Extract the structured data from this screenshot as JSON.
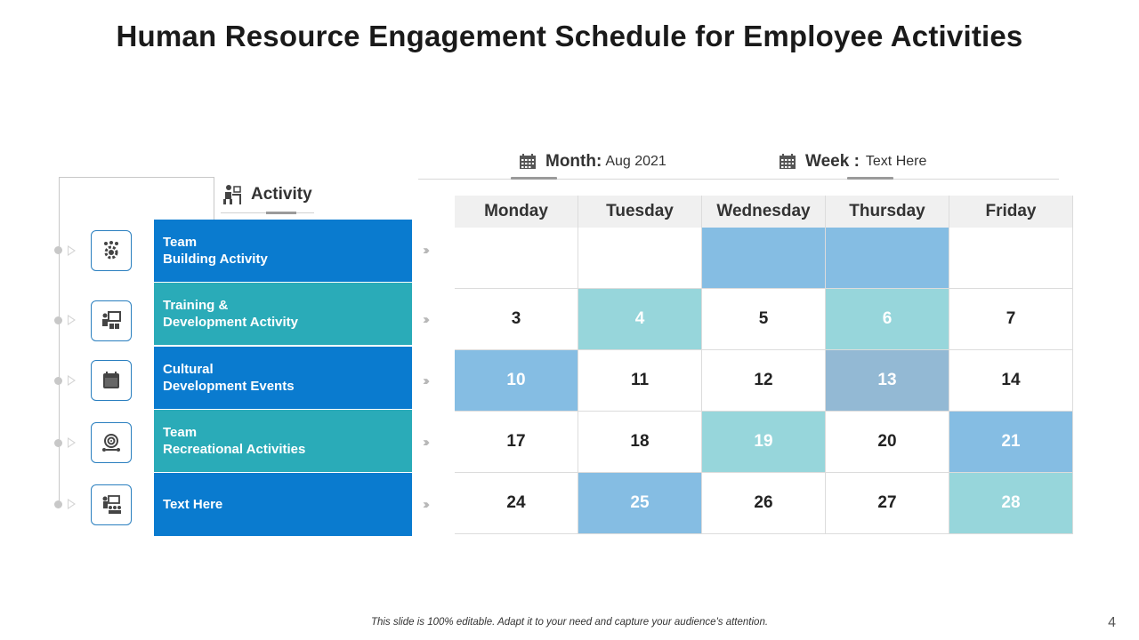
{
  "title": "Human Resource Engagement Schedule for Employee Activities",
  "header": {
    "month_label": "Month:",
    "month_value": "Aug 2021",
    "week_label": "Week :",
    "week_value": "Text  Here"
  },
  "activity_header": "Activity",
  "activities": [
    {
      "line1": "Team",
      "line2": "Building Activity",
      "icon": "team-gear-icon",
      "color": "#0a7bcf"
    },
    {
      "line1": "Training &",
      "line2": "Development Activity",
      "icon": "presentation-icon",
      "color": "#2aabb8"
    },
    {
      "line1": "Cultural",
      "line2": "Development Events",
      "icon": "calendar-icon",
      "color": "#0a7bcf"
    },
    {
      "line1": "Team",
      "line2": "Recreational Activities",
      "icon": "target-icon",
      "color": "#2aabb8"
    },
    {
      "line1": "Text Here",
      "line2": "",
      "icon": "meeting-icon",
      "color": "#0a7bcf"
    }
  ],
  "calendar": {
    "days": [
      "Monday",
      "Tuesday",
      "Wednesday",
      "Thursday",
      "Friday"
    ],
    "rows": [
      [
        {
          "v": "",
          "bg": "#ffffff"
        },
        {
          "v": "",
          "bg": "#ffffff"
        },
        {
          "v": "",
          "bg": "#85bde3"
        },
        {
          "v": "",
          "bg": "#85bde3"
        },
        {
          "v": "",
          "bg": "#ffffff"
        }
      ],
      [
        {
          "v": "3",
          "bg": "#ffffff"
        },
        {
          "v": "4",
          "bg": "#97d6db"
        },
        {
          "v": "5",
          "bg": "#ffffff"
        },
        {
          "v": "6",
          "bg": "#97d6db"
        },
        {
          "v": "7",
          "bg": "#ffffff"
        }
      ],
      [
        {
          "v": "10",
          "bg": "#85bde3"
        },
        {
          "v": "11",
          "bg": "#ffffff"
        },
        {
          "v": "12",
          "bg": "#ffffff"
        },
        {
          "v": "13",
          "bg": "#93b9d4"
        },
        {
          "v": "14",
          "bg": "#ffffff"
        }
      ],
      [
        {
          "v": "17",
          "bg": "#ffffff"
        },
        {
          "v": "18",
          "bg": "#ffffff"
        },
        {
          "v": "19",
          "bg": "#97d6db"
        },
        {
          "v": "20",
          "bg": "#ffffff"
        },
        {
          "v": "21",
          "bg": "#85bde3"
        }
      ],
      [
        {
          "v": "24",
          "bg": "#ffffff"
        },
        {
          "v": "25",
          "bg": "#85bde3"
        },
        {
          "v": "26",
          "bg": "#ffffff"
        },
        {
          "v": "27",
          "bg": "#ffffff"
        },
        {
          "v": "28",
          "bg": "#97d6db"
        }
      ]
    ]
  },
  "footer": "This slide is 100% editable. Adapt it to your need and capture your audience's attention.",
  "page_number": "4"
}
